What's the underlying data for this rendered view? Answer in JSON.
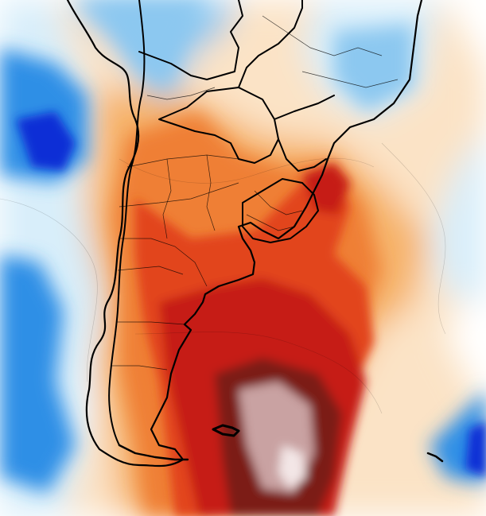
{
  "map": {
    "kind": "temperature-anomaly-field",
    "region": "southern-south-america",
    "labels": [],
    "palette": {
      "strong_cold": "#0b2fd6",
      "cold": "#2f8fe6",
      "cool": "#8cc8f0",
      "faint_cool": "#d8eefa",
      "neutral": "#ffffff",
      "faint_warm": "#fbe3c6",
      "warm": "#f6b36a",
      "warmer": "#ef7f34",
      "hot": "#e2441c",
      "very_hot": "#c61a12",
      "extreme": "#7b1d18",
      "extreme_core": "#c9a2a2",
      "extreme_peak": "#f3e6e6",
      "borders": "#000000"
    }
  }
}
